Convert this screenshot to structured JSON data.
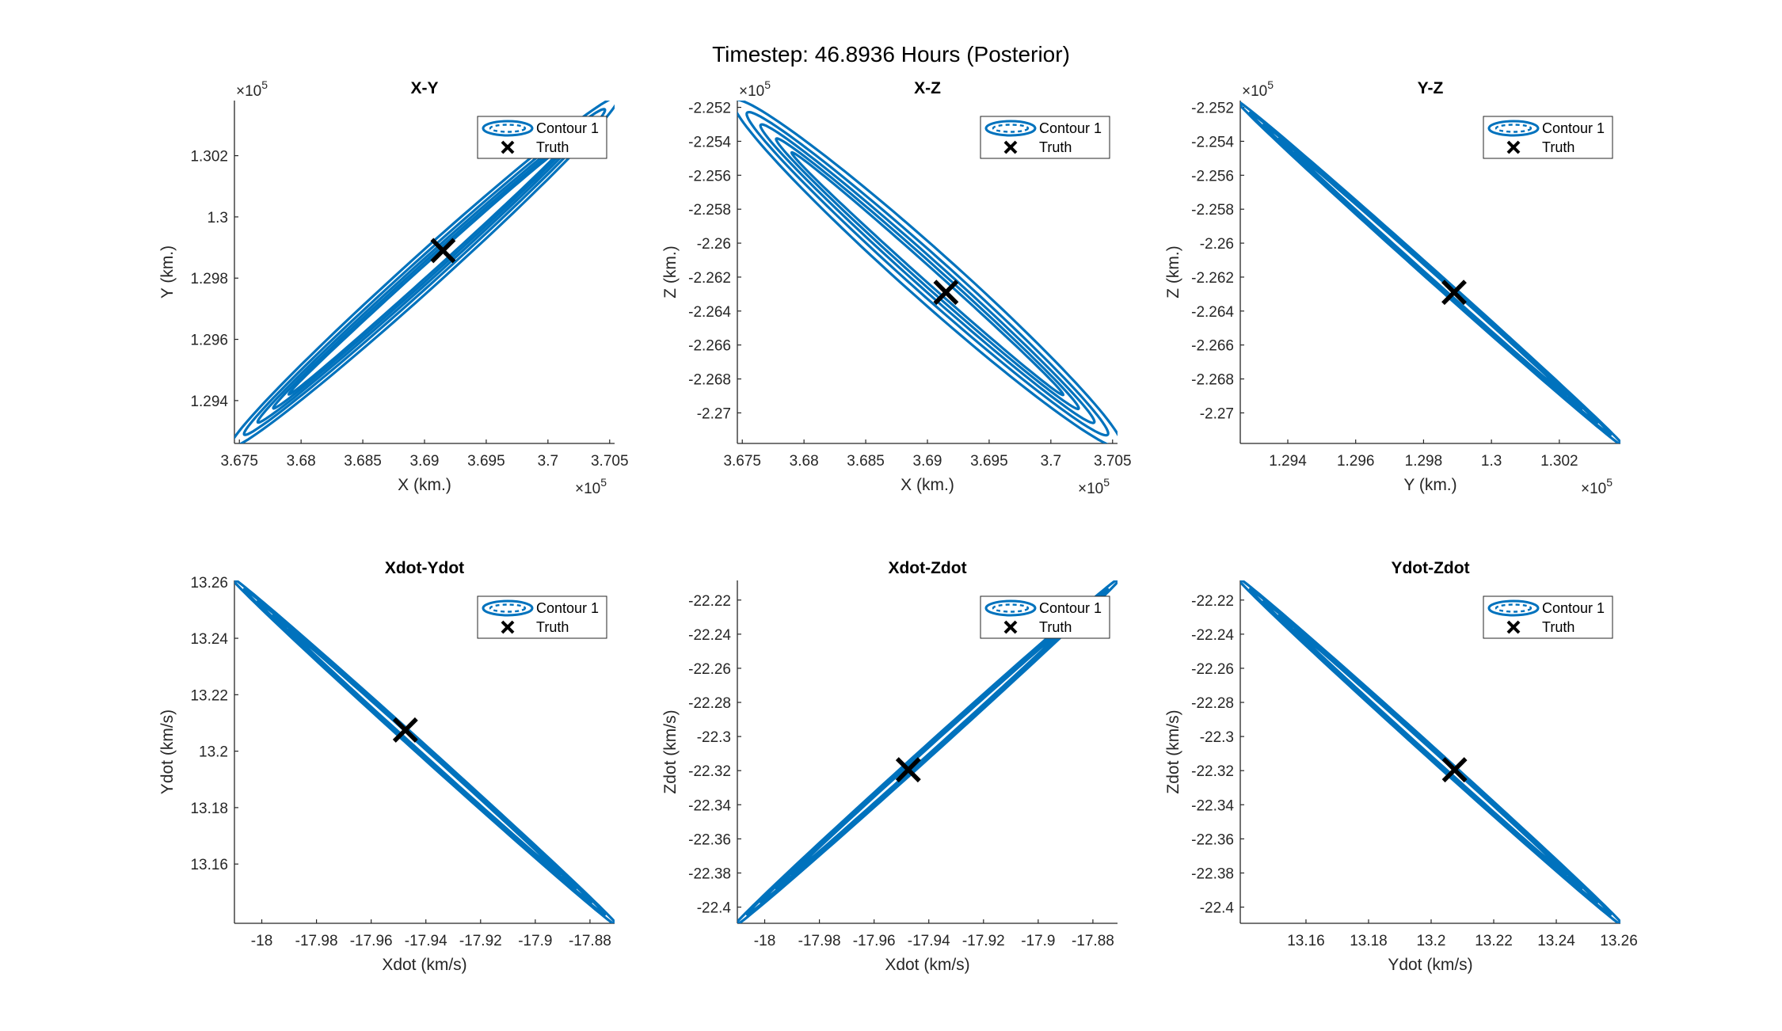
{
  "figure_title": "Timestep: 46.8936 Hours (Posterior)",
  "colors": {
    "contour": "#0072BD",
    "truth": "#000000",
    "axis": "#262626"
  },
  "chart_data": [
    {
      "type": "line",
      "title": "X-Y",
      "xlabel": "X (km.)",
      "ylabel": "Y (km.)",
      "x_exponent": "×10",
      "x_exponent_power": "5",
      "y_exponent": "×10",
      "y_exponent_power": "5",
      "xlim": [
        3.6746,
        3.7054
      ],
      "ylim": [
        1.2926,
        1.3038
      ],
      "xticks": [
        3.675,
        3.68,
        3.685,
        3.69,
        3.695,
        3.7,
        3.705
      ],
      "xtick_labels": [
        "3.675",
        "3.68",
        "3.685",
        "3.69",
        "3.695",
        "3.7",
        "3.705"
      ],
      "yticks": [
        1.294,
        1.296,
        1.298,
        1.3,
        1.302
      ],
      "ytick_labels": [
        "1.294",
        "1.296",
        "1.298",
        "1.3",
        "1.302"
      ],
      "legend": [
        "Contour 1",
        "Truth"
      ],
      "legend_location": "top-right",
      "truth": [
        3.6915,
        1.2989
      ],
      "contour": {
        "p1": [
          3.6746,
          1.2926
        ],
        "p2": [
          3.7054,
          1.3038
        ],
        "bulge": 0.03
      }
    },
    {
      "type": "line",
      "title": "X-Z",
      "xlabel": "X (km.)",
      "ylabel": "Z (km.)",
      "x_exponent": "×10",
      "x_exponent_power": "5",
      "y_exponent": "×10",
      "y_exponent_power": "5",
      "xlim": [
        3.6746,
        3.7054
      ],
      "ylim": [
        -2.2718,
        -2.2516
      ],
      "xticks": [
        3.675,
        3.68,
        3.685,
        3.69,
        3.695,
        3.7,
        3.705
      ],
      "xtick_labels": [
        "3.675",
        "3.68",
        "3.685",
        "3.69",
        "3.695",
        "3.7",
        "3.705"
      ],
      "yticks": [
        -2.27,
        -2.268,
        -2.266,
        -2.264,
        -2.262,
        -2.26,
        -2.258,
        -2.256,
        -2.254,
        -2.252
      ],
      "ytick_labels": [
        "-2.27",
        "-2.268",
        "-2.266",
        "-2.264",
        "-2.262",
        "-2.26",
        "-2.258",
        "-2.256",
        "-2.254",
        "-2.252"
      ],
      "legend": [
        "Contour 1",
        "Truth"
      ],
      "legend_location": "top-right",
      "truth": [
        3.6915,
        -2.2629
      ],
      "contour": {
        "p1": [
          3.6746,
          -2.2518
        ],
        "p2": [
          3.7054,
          -2.2718
        ],
        "bulge": 0.045
      }
    },
    {
      "type": "line",
      "title": "Y-Z",
      "xlabel": "Y (km.)",
      "ylabel": "Z (km.)",
      "x_exponent": "×10",
      "x_exponent_power": "5",
      "y_exponent": "×10",
      "y_exponent_power": "5",
      "xlim": [
        1.2926,
        1.3038
      ],
      "ylim": [
        -2.2718,
        -2.2516
      ],
      "xticks": [
        1.294,
        1.296,
        1.298,
        1.3,
        1.302
      ],
      "xtick_labels": [
        "1.294",
        "1.296",
        "1.298",
        "1.3",
        "1.302"
      ],
      "yticks": [
        -2.27,
        -2.268,
        -2.266,
        -2.264,
        -2.262,
        -2.26,
        -2.258,
        -2.256,
        -2.254,
        -2.252
      ],
      "ytick_labels": [
        "-2.27",
        "-2.268",
        "-2.266",
        "-2.264",
        "-2.262",
        "-2.26",
        "-2.258",
        "-2.256",
        "-2.254",
        "-2.252"
      ],
      "legend": [
        "Contour 1",
        "Truth"
      ],
      "legend_location": "top-right",
      "truth": [
        1.2989,
        -2.2629
      ],
      "contour": {
        "p1": [
          1.2926,
          -2.2518
        ],
        "p2": [
          1.3038,
          -2.2718
        ],
        "bulge": 0.008
      }
    },
    {
      "type": "line",
      "title": "Xdot-Ydot",
      "xlabel": "Xdot (km/s)",
      "ylabel": "Ydot (km/s)",
      "xlim": [
        -18.01,
        -17.871
      ],
      "ylim": [
        13.139,
        13.2605
      ],
      "xticks": [
        -18,
        -17.98,
        -17.96,
        -17.94,
        -17.92,
        -17.9,
        -17.88
      ],
      "xtick_labels": [
        "-18",
        "-17.98",
        "-17.96",
        "-17.94",
        "-17.92",
        "-17.9",
        "-17.88"
      ],
      "yticks": [
        13.16,
        13.18,
        13.2,
        13.22,
        13.24,
        13.26
      ],
      "ytick_labels": [
        "13.16",
        "13.18",
        "13.2",
        "13.22",
        "13.24",
        "13.26"
      ],
      "legend": [
        "Contour 1",
        "Truth"
      ],
      "legend_location": "top-right",
      "truth": [
        -17.9475,
        13.2075
      ],
      "contour": {
        "p1": [
          -18.01,
          13.2605
        ],
        "p2": [
          -17.871,
          13.139
        ],
        "bulge": 0.008
      }
    },
    {
      "type": "line",
      "title": "Xdot-Zdot",
      "xlabel": "Xdot (km/s)",
      "ylabel": "Zdot (km/s)",
      "xlim": [
        -18.01,
        -17.871
      ],
      "ylim": [
        -22.4095,
        -22.2085
      ],
      "xticks": [
        -18,
        -17.98,
        -17.96,
        -17.94,
        -17.92,
        -17.9,
        -17.88
      ],
      "xtick_labels": [
        "-18",
        "-17.98",
        "-17.96",
        "-17.94",
        "-17.92",
        "-17.9",
        "-17.88"
      ],
      "yticks": [
        -22.4,
        -22.38,
        -22.36,
        -22.34,
        -22.32,
        -22.3,
        -22.28,
        -22.26,
        -22.24,
        -22.22
      ],
      "ytick_labels": [
        "-22.4",
        "-22.38",
        "-22.36",
        "-22.34",
        "-22.32",
        "-22.3",
        "-22.28",
        "-22.26",
        "-22.24",
        "-22.22"
      ],
      "legend": [
        "Contour 1",
        "Truth"
      ],
      "legend_location": "top-right",
      "truth": [
        -17.9475,
        -22.3195
      ],
      "contour": {
        "p1": [
          -18.01,
          -22.4095
        ],
        "p2": [
          -17.871,
          -22.2085
        ],
        "bulge": 0.008
      }
    },
    {
      "type": "line",
      "title": "Ydot-Zdot",
      "xlabel": "Ydot (km/s)",
      "ylabel": "Zdot (km/s)",
      "xlim": [
        13.139,
        13.2605
      ],
      "ylim": [
        -22.4095,
        -22.2085
      ],
      "xticks": [
        13.16,
        13.18,
        13.2,
        13.22,
        13.24,
        13.26
      ],
      "xtick_labels": [
        "13.16",
        "13.18",
        "13.2",
        "13.22",
        "13.24",
        "13.26"
      ],
      "yticks": [
        -22.4,
        -22.38,
        -22.36,
        -22.34,
        -22.32,
        -22.3,
        -22.28,
        -22.26,
        -22.24,
        -22.22
      ],
      "ytick_labels": [
        "-22.4",
        "-22.38",
        "-22.36",
        "-22.34",
        "-22.32",
        "-22.3",
        "-22.28",
        "-22.26",
        "-22.24",
        "-22.22"
      ],
      "legend": [
        "Contour 1",
        "Truth"
      ],
      "legend_location": "top-right",
      "truth": [
        13.2075,
        -22.3195
      ],
      "contour": {
        "p1": [
          13.139,
          -22.2085
        ],
        "p2": [
          13.2605,
          -22.4095
        ],
        "bulge": 0.008
      }
    }
  ]
}
